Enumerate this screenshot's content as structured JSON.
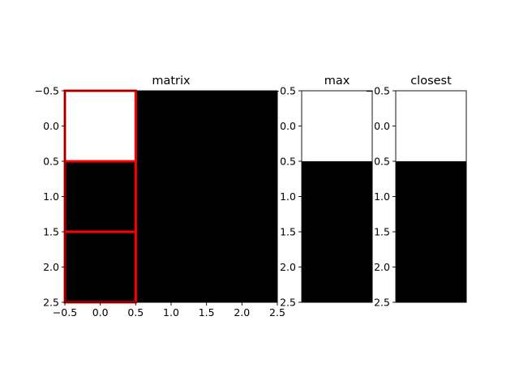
{
  "chart_data": [
    {
      "type": "heatmap",
      "title": "matrix",
      "colormap": "gray",
      "xlim": [
        -0.5,
        2.5
      ],
      "ylim": [
        2.5,
        -0.5
      ],
      "y_inverted": true,
      "xticks": [
        "-0.5",
        "0.0",
        "0.5",
        "1.0",
        "1.5",
        "2.0",
        "2.5"
      ],
      "yticks": [
        "-0.5",
        "0.0",
        "0.5",
        "1.0",
        "1.5",
        "2.0",
        "2.5"
      ],
      "values": [
        [
          1,
          0,
          0
        ],
        [
          0,
          0,
          0
        ],
        [
          0,
          0,
          0
        ]
      ],
      "highlighted_cells": [
        [
          0,
          0
        ],
        [
          1,
          0
        ],
        [
          2,
          0
        ]
      ],
      "highlight_color": "#ff0000"
    },
    {
      "type": "heatmap",
      "title": "max",
      "colormap": "gray",
      "ylim": [
        2.5,
        -0.5
      ],
      "y_inverted": true,
      "yticks": [
        "-0.5",
        "0.0",
        "0.5",
        "1.0",
        "1.5",
        "2.0",
        "2.5"
      ],
      "values": [
        [
          1
        ],
        [
          0
        ],
        [
          0
        ]
      ]
    },
    {
      "type": "heatmap",
      "title": "closest",
      "colormap": "gray",
      "ylim": [
        2.5,
        -0.5
      ],
      "y_inverted": true,
      "yticks": [
        "-0.5",
        "0.0",
        "0.5",
        "1.0",
        "1.5",
        "2.0",
        "2.5"
      ],
      "values": [
        [
          1
        ],
        [
          0
        ],
        [
          0
        ]
      ]
    }
  ]
}
